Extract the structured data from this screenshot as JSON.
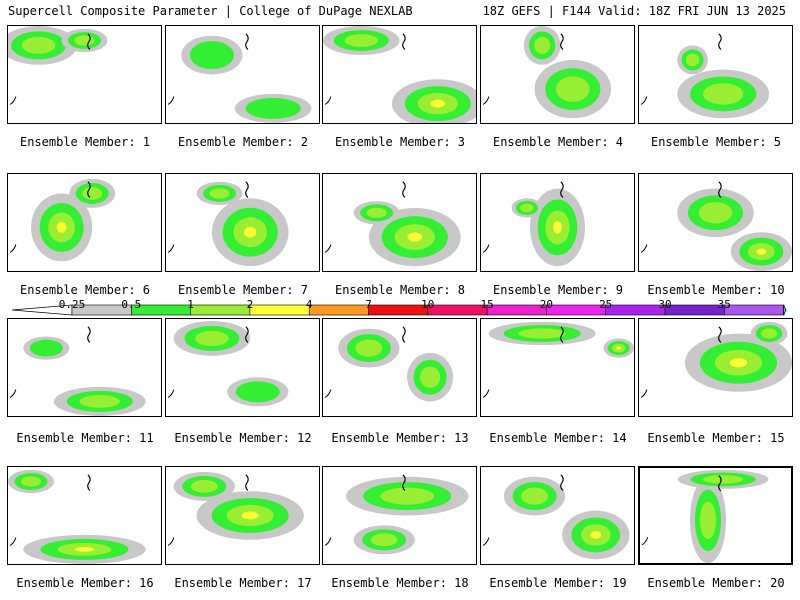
{
  "header": {
    "title": "Supercell Composite Parameter | College of DuPage NEXLAB",
    "run_info": "18Z GEFS | F144 Valid: 18Z FRI JUN 13 2025"
  },
  "colors": {
    "bin_0_25": "#c8c8c8",
    "bin_0_5": "#33ee33",
    "bin_1": "#99ee33",
    "bin_2": "#ffff33",
    "bin_4": "#ff9922",
    "bin_7": "#ee1111",
    "bin_10": "#ee1166",
    "bin_15": "#ee22cc",
    "bin_20": "#ee22ee",
    "bin_25": "#aa22ee",
    "bin_30": "#7722cc",
    "bin_35": "#aa55ee",
    "bin_max": "#33ddee"
  },
  "colorbar": {
    "ticks": [
      "0.25",
      "0.5",
      "1",
      "2",
      "4",
      "7",
      "10",
      "15",
      "20",
      "25",
      "30",
      "35"
    ]
  },
  "members": [
    {
      "label": "Ensemble Member: 1",
      "blobs": [
        [
          0.2,
          0.2,
          0.25,
          0.2,
          1
        ],
        [
          0.5,
          0.15,
          0.15,
          0.12,
          1
        ]
      ]
    },
    {
      "label": "Ensemble Member: 2",
      "blobs": [
        [
          0.3,
          0.3,
          0.2,
          0.2,
          0
        ],
        [
          0.7,
          0.85,
          0.25,
          0.15,
          0
        ]
      ]
    },
    {
      "label": "Ensemble Member: 3",
      "blobs": [
        [
          0.75,
          0.8,
          0.3,
          0.25,
          3
        ],
        [
          0.25,
          0.15,
          0.25,
          0.15,
          1
        ]
      ]
    },
    {
      "label": "Ensemble Member: 4",
      "blobs": [
        [
          0.6,
          0.65,
          0.25,
          0.3,
          1
        ],
        [
          0.4,
          0.2,
          0.12,
          0.2,
          1
        ]
      ]
    },
    {
      "label": "Ensemble Member: 5",
      "blobs": [
        [
          0.55,
          0.7,
          0.3,
          0.25,
          1
        ],
        [
          0.35,
          0.35,
          0.1,
          0.15,
          1
        ]
      ]
    },
    {
      "label": "Ensemble Member: 6",
      "blobs": [
        [
          0.35,
          0.55,
          0.2,
          0.35,
          2
        ],
        [
          0.55,
          0.2,
          0.15,
          0.15,
          1
        ]
      ]
    },
    {
      "label": "Ensemble Member: 7",
      "blobs": [
        [
          0.55,
          0.6,
          0.25,
          0.35,
          2
        ],
        [
          0.35,
          0.2,
          0.15,
          0.12,
          1
        ]
      ]
    },
    {
      "label": "Ensemble Member: 8",
      "blobs": [
        [
          0.6,
          0.65,
          0.3,
          0.3,
          2
        ],
        [
          0.35,
          0.4,
          0.15,
          0.12,
          1
        ]
      ]
    },
    {
      "label": "Ensemble Member: 9",
      "blobs": [
        [
          0.5,
          0.55,
          0.18,
          0.4,
          3
        ],
        [
          0.3,
          0.35,
          0.1,
          0.1,
          1
        ]
      ]
    },
    {
      "label": "Ensemble Member: 10",
      "blobs": [
        [
          0.8,
          0.8,
          0.2,
          0.2,
          2
        ],
        [
          0.5,
          0.4,
          0.25,
          0.25,
          1
        ]
      ]
    },
    {
      "label": "Ensemble Member: 11",
      "blobs": [
        [
          0.6,
          0.85,
          0.3,
          0.15,
          1
        ],
        [
          0.25,
          0.3,
          0.15,
          0.12,
          0
        ]
      ]
    },
    {
      "label": "Ensemble Member: 12",
      "blobs": [
        [
          0.3,
          0.2,
          0.25,
          0.18,
          1
        ],
        [
          0.6,
          0.75,
          0.2,
          0.15,
          0
        ]
      ]
    },
    {
      "label": "Ensemble Member: 13",
      "blobs": [
        [
          0.3,
          0.3,
          0.2,
          0.2,
          1
        ],
        [
          0.7,
          0.6,
          0.15,
          0.25,
          1
        ]
      ]
    },
    {
      "label": "Ensemble Member: 14",
      "blobs": [
        [
          0.4,
          0.15,
          0.35,
          0.12,
          1
        ],
        [
          0.9,
          0.3,
          0.1,
          0.1,
          2
        ]
      ]
    },
    {
      "label": "Ensemble Member: 15",
      "blobs": [
        [
          0.65,
          0.45,
          0.35,
          0.3,
          2
        ],
        [
          0.85,
          0.15,
          0.12,
          0.12,
          1
        ]
      ]
    },
    {
      "label": "Ensemble Member: 16",
      "blobs": [
        [
          0.5,
          0.85,
          0.4,
          0.15,
          2
        ],
        [
          0.15,
          0.15,
          0.15,
          0.12,
          1
        ]
      ]
    },
    {
      "label": "Ensemble Member: 17",
      "blobs": [
        [
          0.55,
          0.5,
          0.35,
          0.25,
          2
        ],
        [
          0.25,
          0.2,
          0.2,
          0.15,
          1
        ]
      ]
    },
    {
      "label": "Ensemble Member: 18",
      "blobs": [
        [
          0.55,
          0.3,
          0.4,
          0.2,
          1
        ],
        [
          0.4,
          0.75,
          0.2,
          0.15,
          1
        ]
      ]
    },
    {
      "label": "Ensemble Member: 19",
      "blobs": [
        [
          0.75,
          0.7,
          0.22,
          0.25,
          3
        ],
        [
          0.35,
          0.3,
          0.2,
          0.2,
          1
        ]
      ]
    },
    {
      "label": "Ensemble Member: 20",
      "blobs": [
        [
          0.45,
          0.55,
          0.12,
          0.45,
          1
        ],
        [
          0.55,
          0.12,
          0.3,
          0.1,
          1
        ]
      ]
    }
  ]
}
